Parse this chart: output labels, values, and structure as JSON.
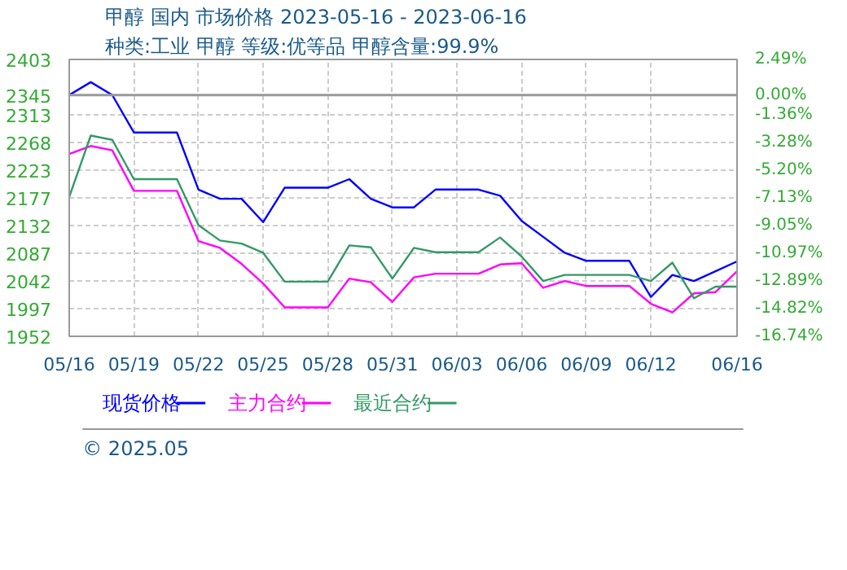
{
  "chart_data": {
    "type": "line",
    "title": "甲醇 国内 市场价格 2023-05-16 - 2023-06-16",
    "subtitle": "种类:工业 甲醇 等级:优等品 甲醇含量:99.9%",
    "x": [
      "2023-05-16",
      "2023-05-17",
      "2023-05-18",
      "2023-05-19",
      "2023-05-20",
      "2023-05-21",
      "2023-05-22",
      "2023-05-23",
      "2023-05-24",
      "2023-05-25",
      "2023-05-26",
      "2023-05-27",
      "2023-05-28",
      "2023-05-29",
      "2023-05-30",
      "2023-05-31",
      "2023-06-01",
      "2023-06-02",
      "2023-06-03",
      "2023-06-04",
      "2023-06-05",
      "2023-06-06",
      "2023-06-07",
      "2023-06-08",
      "2023-06-09",
      "2023-06-10",
      "2023-06-11",
      "2023-06-12",
      "2023-06-13",
      "2023-06-14",
      "2023-06-15",
      "2023-06-16"
    ],
    "series": [
      {
        "name": "现货价格",
        "color": "#0000ff",
        "values": [
          2345,
          2366,
          2345,
          2284,
          2284,
          2284,
          2191,
          2176,
          2176,
          2138,
          2194,
          2194,
          2194,
          2208,
          2176,
          2162,
          2162,
          2191,
          2191,
          2191,
          2181,
          2140,
          2114,
          2088,
          2075,
          2075,
          2075,
          2016,
          2052,
          2042,
          2058,
          2074
        ]
      },
      {
        "name": "主力合约",
        "color": "#ff00ff",
        "values": [
          2249,
          2262,
          2255,
          2189,
          2189,
          2189,
          2107,
          2096,
          2070,
          2038,
          1999,
          1999,
          1999,
          2046,
          2040,
          2008,
          2048,
          2054,
          2054,
          2054,
          2069,
          2071,
          2031,
          2042,
          2034,
          2034,
          2034,
          2005,
          1991,
          2022,
          2024,
          2058
        ]
      },
      {
        "name": "最近合约",
        "color": "#339966",
        "values": [
          2179,
          2279,
          2272,
          2208,
          2208,
          2208,
          2133,
          2108,
          2103,
          2088,
          2041,
          2041,
          2041,
          2100,
          2097,
          2046,
          2096,
          2089,
          2089,
          2089,
          2113,
          2082,
          2042,
          2052,
          2052,
          2052,
          2052,
          2042,
          2072,
          2014,
          2033,
          2033
        ]
      }
    ],
    "xlim": [
      "2023-05-16",
      "2023-06-16"
    ],
    "xticks": [
      {
        "value": "2023-05-16",
        "label": "05/16"
      },
      {
        "value": "2023-05-19",
        "label": "05/19"
      },
      {
        "value": "2023-05-22",
        "label": "05/22"
      },
      {
        "value": "2023-05-25",
        "label": "05/25"
      },
      {
        "value": "2023-05-28",
        "label": "05/28"
      },
      {
        "value": "2023-05-31",
        "label": "05/31"
      },
      {
        "value": "2023-06-03",
        "label": "06/03"
      },
      {
        "value": "2023-06-06",
        "label": "06/06"
      },
      {
        "value": "2023-06-09",
        "label": "06/09"
      },
      {
        "value": "2023-06-12",
        "label": "06/12"
      },
      {
        "value": "2023-06-16",
        "label": "06/16"
      }
    ],
    "ylim": [
      1952,
      2403
    ],
    "yticks": [
      1952,
      1997,
      2042,
      2087,
      2132,
      2177,
      2223,
      2268,
      2313,
      2345,
      2403
    ],
    "y2lim": [
      -16.74,
      2.49
    ],
    "y2ticks": [
      {
        "value": -16.74,
        "label": "-16.74%"
      },
      {
        "value": -14.82,
        "label": "-14.82%"
      },
      {
        "value": -12.89,
        "label": "-12.89%"
      },
      {
        "value": -10.97,
        "label": "-10.97%"
      },
      {
        "value": -9.05,
        "label": "-9.05%"
      },
      {
        "value": -7.13,
        "label": "-7.13%"
      },
      {
        "value": -5.2,
        "label": "-5.20%"
      },
      {
        "value": -3.28,
        "label": "-3.28%"
      },
      {
        "value": -1.36,
        "label": "-1.36%"
      },
      {
        "value": 0,
        "label": "0.00%"
      },
      {
        "value": 2.49,
        "label": "2.49%"
      }
    ],
    "ref_lines": [
      {
        "axis": "y",
        "value": 2345,
        "color": "#999999"
      }
    ],
    "grid": true,
    "legend": "bottom",
    "annotations": [
      "© 2025.05"
    ]
  }
}
